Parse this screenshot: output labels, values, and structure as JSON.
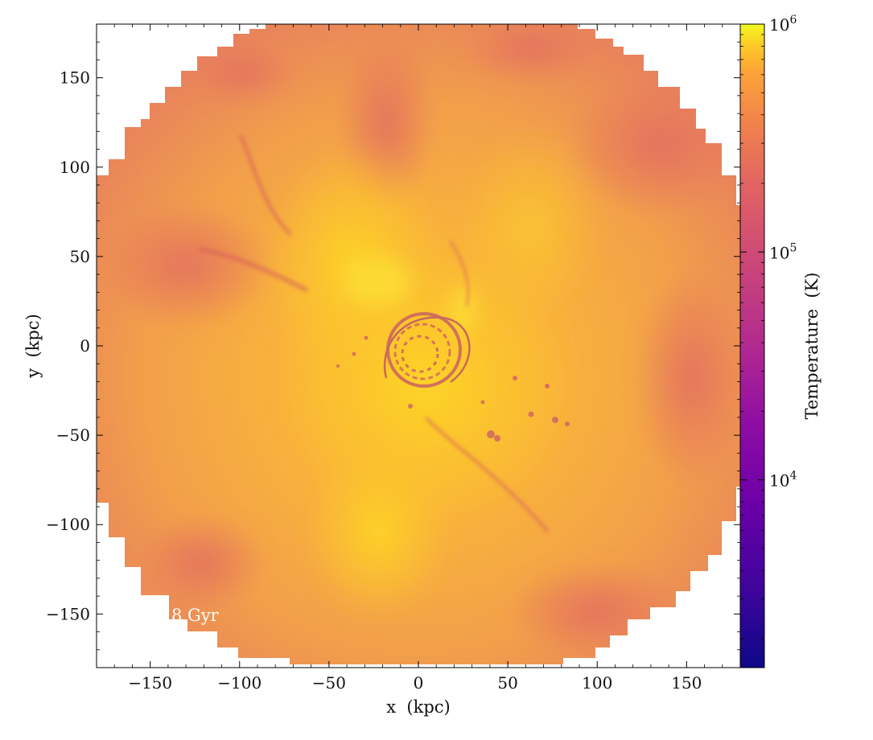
{
  "chart_data": {
    "type": "heatmap",
    "title": "",
    "xlabel": "x  (kpc)",
    "ylabel": "y  (kpc)",
    "xlim": [
      -180,
      180
    ],
    "ylim": [
      -180,
      180
    ],
    "xticks": [
      -150,
      -100,
      -50,
      0,
      50,
      100,
      150
    ],
    "yticks": [
      -150,
      -100,
      -50,
      0,
      50,
      100,
      150
    ],
    "xtick_labels": [
      "−150",
      "−100",
      "−50",
      "0",
      "50",
      "100",
      "150"
    ],
    "ytick_labels": [
      "−150",
      "−100",
      "−50",
      "0",
      "50",
      "100",
      "150"
    ],
    "field": "Temperature",
    "grid": false,
    "map_extent_radius_kpc": 180,
    "features": [
      {
        "name": "central disk",
        "x": 5,
        "y": -8,
        "r": 32,
        "tone": "cool-filaments"
      },
      {
        "name": "hot central region",
        "x": -5,
        "y": 20,
        "r": 70,
        "tone": "hot"
      },
      {
        "name": "cool clumps trail",
        "x": 55,
        "y": -30,
        "r": 40,
        "tone": "cool-clumps"
      }
    ],
    "colorbar": {
      "label": "Temperature  (K)",
      "scale": "log",
      "min": 1500,
      "max": 1000000,
      "colormap": "plasma",
      "ticks": [
        10000,
        100000,
        1000000
      ],
      "tick_labels": [
        "10",
        "10",
        "10"
      ],
      "tick_exponents": [
        "4",
        "5",
        "6"
      ]
    },
    "annotation": "8 Gyr"
  }
}
